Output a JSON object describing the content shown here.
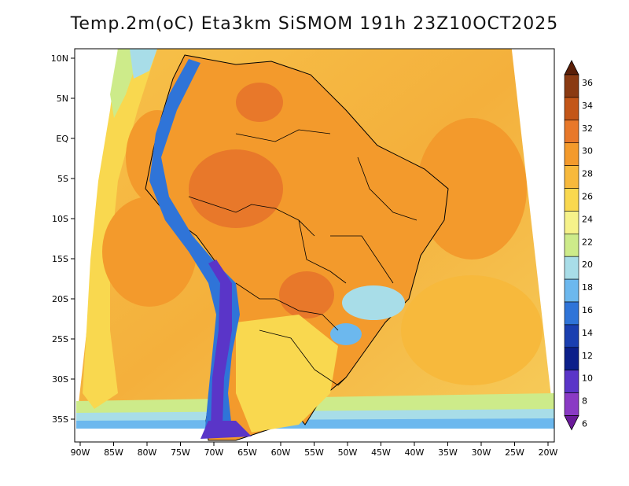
{
  "title": "Temp.2m(oC) Eta3km SiSMOM 191h 23Z10OCT2025",
  "map": {
    "lon_labels": [
      "90W",
      "85W",
      "80W",
      "75W",
      "70W",
      "65W",
      "60W",
      "55W",
      "50W",
      "45W",
      "40W",
      "35W",
      "30W",
      "25W",
      "20W"
    ],
    "lat_labels": [
      "10N",
      "5N",
      "EQ",
      "5S",
      "10S",
      "15S",
      "20S",
      "25S",
      "30S",
      "35S"
    ]
  },
  "colorbar": {
    "labels": [
      "36",
      "34",
      "32",
      "30",
      "28",
      "26",
      "24",
      "22",
      "20",
      "18",
      "16",
      "14",
      "12",
      "10",
      "8",
      "6"
    ],
    "colors": [
      "#5a1f08",
      "#8a3a12",
      "#c35618",
      "#e8782a",
      "#f39a2c",
      "#f7b93c",
      "#f9d84f",
      "#f6f28a",
      "#cdeb8a",
      "#a8dde8",
      "#6cb8ee",
      "#2f74d8",
      "#1a3fb0",
      "#0c1f8a",
      "#5a35c8",
      "#8a3ac4",
      "#6a1a9a"
    ]
  }
}
